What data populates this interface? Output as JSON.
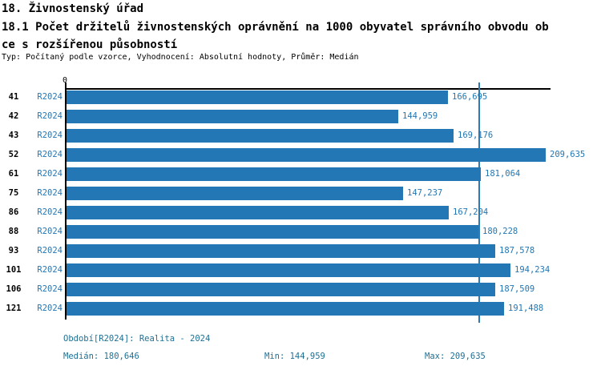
{
  "header": {
    "section_title": "18. Živnostenský úřad",
    "title_line1": "18.1 Počet držitelů živnostenských oprávnění na 1000 obyvatel správního obvodu ob",
    "title_line2": "ce s rozšířenou působností",
    "meta": "Typ: Počítaný podle vzorce, Vyhodnocení: Absolutní hodnoty, Průměr: Medián"
  },
  "chart_data": {
    "type": "bar",
    "orientation": "horizontal",
    "title": "18.1 Počet držitelů živnostenských oprávnění na 1000 obyvatel správního obvodu obce s rozšířenou působností",
    "categories": [
      "41",
      "42",
      "43",
      "52",
      "61",
      "75",
      "86",
      "88",
      "93",
      "101",
      "106",
      "121"
    ],
    "series": [
      {
        "name": "R2024",
        "values": [
          166.695,
          144.959,
          169.176,
          209.635,
          181.064,
          147.237,
          167.204,
          180.228,
          187.578,
          194.234,
          187.509,
          191.488
        ]
      }
    ],
    "value_labels": [
      "166,695",
      "144,959",
      "169,176",
      "209,635",
      "181,064",
      "147,237",
      "167,204",
      "180,228",
      "187,578",
      "194,234",
      "187,509",
      "191,488"
    ],
    "x_axis": {
      "zero_label": "0",
      "xlim": [
        0,
        210
      ],
      "grid": false
    },
    "median_value": 180.646,
    "legend_position": "none",
    "bar_color": "#2277B4",
    "median_line_color": "#2A7BB6",
    "value_label_color": "#2277B4",
    "footer_text_color": "#1E7095"
  },
  "footer": {
    "period": "Období[R2024]: Realita - 2024",
    "median": "Medián: 180,646",
    "min": "Min: 144,959",
    "max": "Max: 209,635"
  }
}
